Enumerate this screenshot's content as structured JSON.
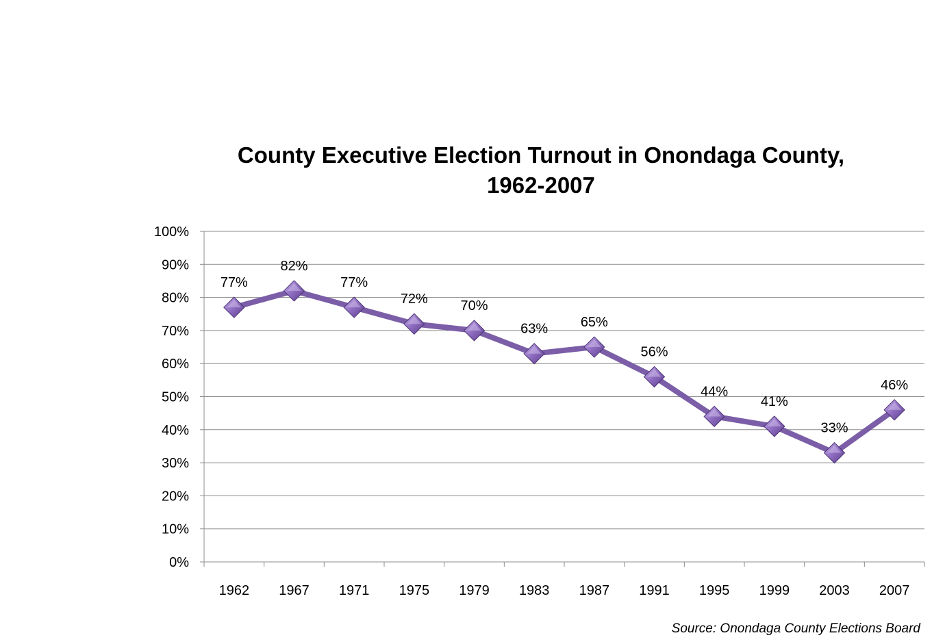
{
  "chart_data": {
    "type": "line",
    "title_lines": [
      "County Executive Election Turnout in Onondaga County,",
      "1962-2007"
    ],
    "categories": [
      "1962",
      "1967",
      "1971",
      "1975",
      "1979",
      "1983",
      "1987",
      "1991",
      "1995",
      "1999",
      "2003",
      "2007"
    ],
    "series": [
      {
        "values": [
          77,
          82,
          77,
          72,
          70,
          63,
          65,
          56,
          44,
          41,
          33,
          46
        ],
        "data_labels": [
          "77%",
          "82%",
          "77%",
          "72%",
          "70%",
          "63%",
          "65%",
          "56%",
          "44%",
          "41%",
          "33%",
          "46%"
        ]
      }
    ],
    "ylim": [
      0,
      100
    ],
    "y_ticks": [
      0,
      10,
      20,
      30,
      40,
      50,
      60,
      70,
      80,
      90,
      100
    ],
    "y_tick_labels": [
      "0%",
      "10%",
      "20%",
      "30%",
      "40%",
      "50%",
      "60%",
      "70%",
      "80%",
      "90%",
      "100%"
    ],
    "grid": true,
    "legend": "none",
    "line_color": "#7b5ea7",
    "marker_color": "#8e6cc0",
    "marker": "diamond",
    "source": "Source: Onondaga County Elections Board"
  }
}
